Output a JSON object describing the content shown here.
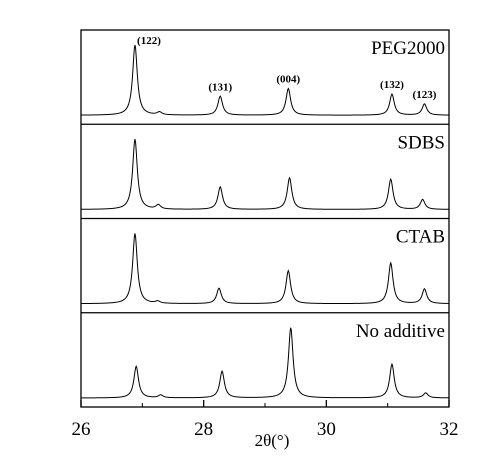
{
  "chart_data": {
    "type": "line",
    "title": "",
    "xlabel": "2θ(°)",
    "ylabel": "",
    "xlim": [
      26,
      32
    ],
    "xticks": [
      "26",
      "28",
      "30",
      "32"
    ],
    "grid": false,
    "legend": "none",
    "color": "#000000",
    "series": [
      {
        "name": "PEG2000",
        "peaks": [
          {
            "x": 26.88,
            "height": 1.0,
            "label": "(122)"
          },
          {
            "x": 27.28,
            "height": 0.04,
            "label": ""
          },
          {
            "x": 28.27,
            "height": 0.27,
            "label": "(131)"
          },
          {
            "x": 29.38,
            "height": 0.38,
            "label": "(004)"
          },
          {
            "x": 31.07,
            "height": 0.3,
            "label": "(132)"
          },
          {
            "x": 31.6,
            "height": 0.16,
            "label": "(123)"
          }
        ]
      },
      {
        "name": "SDBS",
        "peaks": [
          {
            "x": 26.88,
            "height": 1.0,
            "label": ""
          },
          {
            "x": 27.26,
            "height": 0.06,
            "label": ""
          },
          {
            "x": 28.27,
            "height": 0.32,
            "label": ""
          },
          {
            "x": 29.4,
            "height": 0.45,
            "label": ""
          },
          {
            "x": 31.05,
            "height": 0.43,
            "label": ""
          },
          {
            "x": 31.57,
            "height": 0.14,
            "label": ""
          }
        ]
      },
      {
        "name": "CTAB",
        "peaks": [
          {
            "x": 26.88,
            "height": 1.0,
            "label": ""
          },
          {
            "x": 27.25,
            "height": 0.03,
            "label": ""
          },
          {
            "x": 28.25,
            "height": 0.22,
            "label": ""
          },
          {
            "x": 29.38,
            "height": 0.47,
            "label": ""
          },
          {
            "x": 31.05,
            "height": 0.58,
            "label": ""
          },
          {
            "x": 31.6,
            "height": 0.21,
            "label": ""
          }
        ]
      },
      {
        "name": "No additive",
        "peaks": [
          {
            "x": 26.9,
            "height": 0.45,
            "label": ""
          },
          {
            "x": 27.3,
            "height": 0.04,
            "label": ""
          },
          {
            "x": 28.3,
            "height": 0.38,
            "label": ""
          },
          {
            "x": 29.42,
            "height": 1.0,
            "label": ""
          },
          {
            "x": 31.07,
            "height": 0.48,
            "label": ""
          },
          {
            "x": 31.62,
            "height": 0.07,
            "label": ""
          }
        ]
      }
    ]
  }
}
